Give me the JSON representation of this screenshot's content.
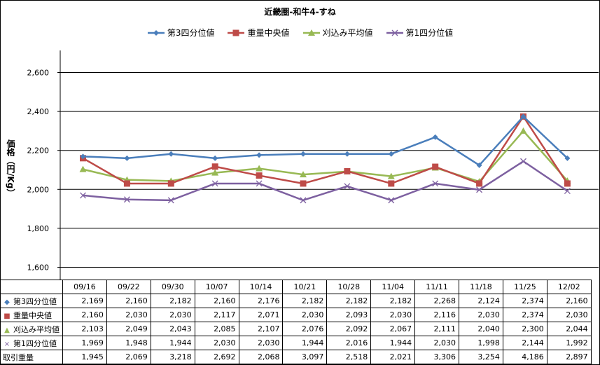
{
  "chart_data": {
    "type": "line",
    "title": "近畿圏-和牛4-すね",
    "ylabel": "価格（円/Kg）",
    "xlabel": "",
    "ylim": [
      1600,
      2600
    ],
    "yticks": [
      "1,600",
      "1,800",
      "2,000",
      "2,200",
      "2,400",
      "2,600"
    ],
    "ytick_values": [
      1600,
      1800,
      2000,
      2200,
      2400,
      2600
    ],
    "grid": true,
    "legend": "top",
    "categories": [
      "09/16",
      "09/22",
      "09/30",
      "10/07",
      "10/14",
      "10/21",
      "10/28",
      "11/04",
      "11/11",
      "11/18",
      "11/25",
      "12/02"
    ],
    "series": [
      {
        "name": "第3四分位値",
        "color": "#4a7ebb",
        "marker": "diamond",
        "values": [
          2169,
          2160,
          2182,
          2160,
          2176,
          2182,
          2182,
          2182,
          2268,
          2124,
          2374,
          2160
        ],
        "labels": [
          "2,169",
          "2,160",
          "2,182",
          "2,160",
          "2,176",
          "2,182",
          "2,182",
          "2,182",
          "2,268",
          "2,124",
          "2,374",
          "2,160"
        ]
      },
      {
        "name": "重量中央値",
        "color": "#be4b48",
        "marker": "square",
        "values": [
          2160,
          2030,
          2030,
          2117,
          2071,
          2030,
          2093,
          2030,
          2116,
          2030,
          2374,
          2030
        ],
        "labels": [
          "2,160",
          "2,030",
          "2,030",
          "2,117",
          "2,071",
          "2,030",
          "2,093",
          "2,030",
          "2,116",
          "2,030",
          "2,374",
          "2,030"
        ]
      },
      {
        "name": "刈込み平均値",
        "color": "#98b954",
        "marker": "triangle",
        "values": [
          2103,
          2049,
          2043,
          2085,
          2107,
          2076,
          2092,
          2067,
          2111,
          2040,
          2300,
          2044
        ],
        "labels": [
          "2,103",
          "2,049",
          "2,043",
          "2,085",
          "2,107",
          "2,076",
          "2,092",
          "2,067",
          "2,111",
          "2,040",
          "2,300",
          "2,044"
        ]
      },
      {
        "name": "第1四分位値",
        "color": "#7d60a0",
        "marker": "x",
        "values": [
          1969,
          1948,
          1944,
          2030,
          2030,
          1944,
          2016,
          1944,
          2030,
          1998,
          2144,
          1992
        ],
        "labels": [
          "1,969",
          "1,948",
          "1,944",
          "2,030",
          "2,030",
          "1,944",
          "2,016",
          "1,944",
          "2,030",
          "1,998",
          "2,144",
          "1,992"
        ]
      }
    ],
    "extra_row": {
      "name": "取引重量",
      "labels": [
        "1,945",
        "2,069",
        "3,218",
        "2,692",
        "2,068",
        "3,097",
        "2,518",
        "2,021",
        "3,306",
        "3,254",
        "4,186",
        "2,897"
      ]
    }
  }
}
